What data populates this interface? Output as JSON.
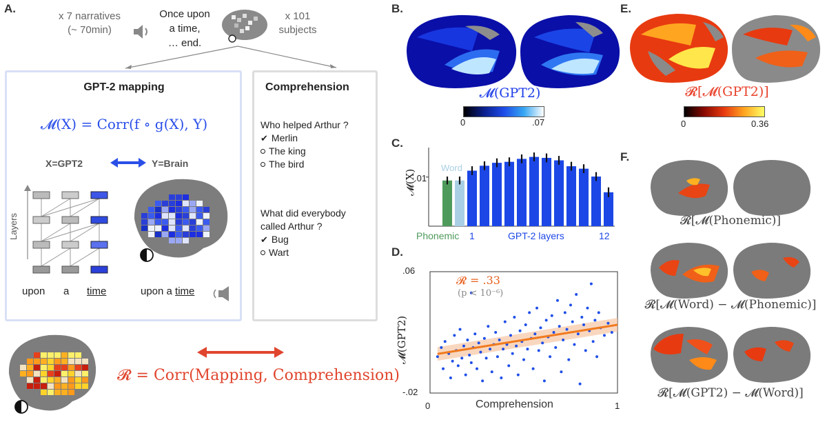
{
  "panel_a": {
    "label": "A.",
    "narratives": "x 7 narratives",
    "duration": "(~ 70min)",
    "story_line1": "Once upon",
    "story_line2": "a time,",
    "story_line3": "… end.",
    "subjects_line1": "x 101",
    "subjects_line2": "subjects",
    "mapping_title": "GPT-2 mapping",
    "mapping_formula": "𝓜(X) = Corr(f ∘ g(X), Y)",
    "x_label": "X=GPT2",
    "y_label": "Y=Brain",
    "layers_label": "Layers",
    "words": [
      "upon",
      "a",
      "time"
    ],
    "audio_text_prefix": "upon a ",
    "audio_text_word": "time",
    "comprehension_title": "Comprehension",
    "q1": "Who helped Arthur ?",
    "q1_options": [
      "Merlin",
      "The king",
      "The bird"
    ],
    "q2_line1": "What did everybody",
    "q2_line2": "called Arthur ?",
    "q2_options": [
      "Bug",
      "Wart"
    ],
    "r_formula": "𝓡 = Corr(Mapping, Comprehension)"
  },
  "panel_b": {
    "label": "B.",
    "caption": "𝓜(GPT2)",
    "cbar_min": "0",
    "cbar_max": ".07"
  },
  "panel_c": {
    "label": "C.",
    "ylabel": "𝓜(X)",
    "tick_y": ".01",
    "word_label": "Word",
    "phonemic_label": "Phonemic",
    "layers_label": "GPT-2 layers",
    "first_layer": "1",
    "last_layer": "12"
  },
  "panel_d": {
    "label": "D.",
    "ylabel": "𝓜(GPT2)",
    "xlabel": "Comprehension",
    "y_top": ".06",
    "y_bottom": "-.02",
    "x_left": "0",
    "x_right": "1",
    "r_value": "𝓡 = .33",
    "p_value": "(p < 10⁻⁶)"
  },
  "panel_e": {
    "label": "E.",
    "caption": "𝓡[𝓜(GPT2)]",
    "cbar_min": "0",
    "cbar_max": "0.36"
  },
  "panel_f": {
    "label": "F.",
    "captions": [
      "𝓡[𝓜(Phonemic)]",
      "𝓡[𝓜(Word) − 𝓜(Phonemic)]",
      "𝓡[𝓜(GPT2) − 𝓜(Word)]"
    ]
  },
  "chart_data": [
    {
      "type": "bar",
      "title": "",
      "ylabel": "M(X)",
      "xlabel": "GPT-2 layers",
      "categories": [
        "Phonemic",
        "Word",
        "L1",
        "L2",
        "L3",
        "L4",
        "L5",
        "L6",
        "L7",
        "L8",
        "L9",
        "L10",
        "L11",
        "L12"
      ],
      "values": [
        0.0093,
        0.0093,
        0.0113,
        0.0123,
        0.0129,
        0.0131,
        0.0137,
        0.0141,
        0.0139,
        0.0134,
        0.0122,
        0.0117,
        0.0101,
        0.0069
      ],
      "errors": [
        0.0008,
        0.0008,
        0.0009,
        0.0009,
        0.0009,
        0.0009,
        0.0009,
        0.0009,
        0.0009,
        0.0009,
        0.0009,
        0.0009,
        0.0009,
        0.001
      ],
      "colors": [
        "#4e9a5b",
        "#a9cfe4",
        "#1c47e6"
      ],
      "ylim": [
        0,
        0.016
      ]
    },
    {
      "type": "scatter",
      "title": "",
      "xlabel": "Comprehension",
      "ylabel": "M(GPT2)",
      "xlim": [
        0,
        1
      ],
      "ylim": [
        -0.02,
        0.06
      ],
      "fit": {
        "intercept": 0.005,
        "slope": 0.02
      },
      "r": 0.33,
      "points": [
        [
          0.04,
          0.004
        ],
        [
          0.06,
          0.01
        ],
        [
          0.07,
          -0.004
        ],
        [
          0.08,
          0.014
        ],
        [
          0.1,
          0.006
        ],
        [
          0.11,
          -0.01
        ],
        [
          0.12,
          0.001
        ],
        [
          0.13,
          0.018
        ],
        [
          0.14,
          0.008
        ],
        [
          0.15,
          -0.002
        ],
        [
          0.16,
          0.022
        ],
        [
          0.17,
          0.003
        ],
        [
          0.18,
          0.011
        ],
        [
          0.19,
          -0.008
        ],
        [
          0.2,
          0.015
        ],
        [
          0.21,
          0.005
        ],
        [
          0.22,
          0.046
        ],
        [
          0.22,
          0.0
        ],
        [
          0.23,
          0.01
        ],
        [
          0.24,
          0.019
        ],
        [
          0.25,
          -0.004
        ],
        [
          0.26,
          0.013
        ],
        [
          0.27,
          0.007
        ],
        [
          0.28,
          -0.012
        ],
        [
          0.29,
          0.016
        ],
        [
          0.3,
          0.003
        ],
        [
          0.31,
          0.024
        ],
        [
          0.32,
          0.009
        ],
        [
          0.33,
          -0.006
        ],
        [
          0.34,
          0.012
        ],
        [
          0.35,
          0.02
        ],
        [
          0.36,
          0.004
        ],
        [
          0.37,
          0.015
        ],
        [
          0.38,
          -0.01
        ],
        [
          0.39,
          0.009
        ],
        [
          0.4,
          0.027
        ],
        [
          0.41,
          0.012
        ],
        [
          0.42,
          -0.002
        ],
        [
          0.43,
          0.018
        ],
        [
          0.44,
          0.006
        ],
        [
          0.45,
          0.03
        ],
        [
          0.46,
          0.011
        ],
        [
          0.47,
          -0.008
        ],
        [
          0.48,
          0.021
        ],
        [
          0.49,
          0.014
        ],
        [
          0.5,
          0.002
        ],
        [
          0.51,
          0.025
        ],
        [
          0.52,
          0.009
        ],
        [
          0.53,
          0.033
        ],
        [
          0.54,
          0.016
        ],
        [
          0.55,
          -0.004
        ],
        [
          0.56,
          0.019
        ],
        [
          0.57,
          0.036
        ],
        [
          0.58,
          0.008
        ],
        [
          0.59,
          0.023
        ],
        [
          0.6,
          0.013
        ],
        [
          0.61,
          -0.012
        ],
        [
          0.62,
          0.028
        ],
        [
          0.63,
          0.017
        ],
        [
          0.64,
          0.004
        ],
        [
          0.65,
          0.031
        ],
        [
          0.66,
          0.02
        ],
        [
          0.67,
          0.01
        ],
        [
          0.68,
          0.041
        ],
        [
          0.69,
          0.024
        ],
        [
          0.7,
          -0.006
        ],
        [
          0.71,
          0.015
        ],
        [
          0.72,
          0.033
        ],
        [
          0.73,
          0.022
        ],
        [
          0.74,
          0.002
        ],
        [
          0.75,
          0.038
        ],
        [
          0.76,
          0.027
        ],
        [
          0.77,
          0.012
        ],
        [
          0.78,
          0.045
        ],
        [
          0.79,
          0.019
        ],
        [
          0.8,
          -0.014
        ],
        [
          0.81,
          0.03
        ],
        [
          0.82,
          0.025
        ],
        [
          0.83,
          0.008
        ],
        [
          0.84,
          0.036
        ],
        [
          0.85,
          0.021
        ],
        [
          0.86,
          0.052
        ],
        [
          0.87,
          0.014
        ],
        [
          0.88,
          0.028
        ],
        [
          0.89,
          0.004
        ],
        [
          0.9,
          0.033
        ],
        [
          0.91,
          0.023
        ],
        [
          0.93,
          0.018
        ],
        [
          0.95,
          0.026
        ],
        [
          0.97,
          0.02
        ]
      ]
    }
  ]
}
